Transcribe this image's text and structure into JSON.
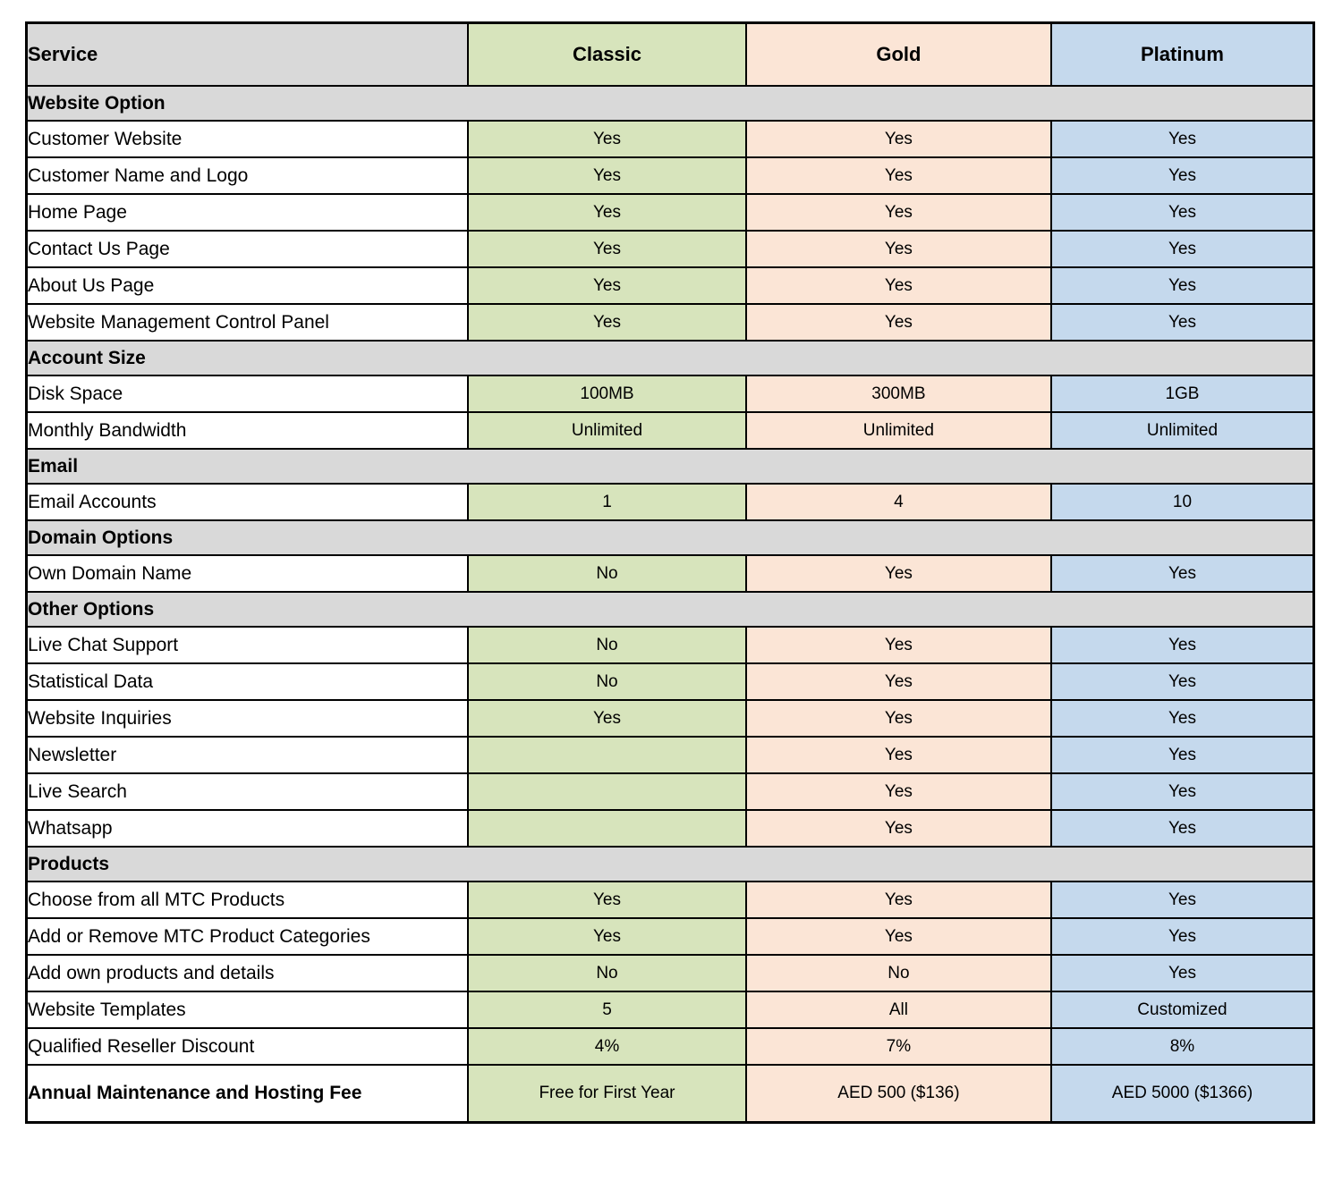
{
  "table": {
    "name": "hosting-plan-comparison",
    "border_color": "#000000",
    "section_bg": "#d9d9d9",
    "columns": [
      {
        "key": "service",
        "label": "Service",
        "bg": "#d9d9d9"
      },
      {
        "key": "classic",
        "label": "Classic",
        "bg": "#d7e4bc"
      },
      {
        "key": "gold",
        "label": "Gold",
        "bg": "#fbe5d6"
      },
      {
        "key": "platinum",
        "label": "Platinum",
        "bg": "#c5d9ed"
      }
    ],
    "sections": [
      {
        "title": "Website Option",
        "rows": [
          {
            "label": "Customer Website",
            "values": [
              "Yes",
              "Yes",
              "Yes"
            ]
          },
          {
            "label": "Customer Name and Logo",
            "values": [
              "Yes",
              "Yes",
              "Yes"
            ]
          },
          {
            "label": "Home Page",
            "values": [
              "Yes",
              "Yes",
              "Yes"
            ]
          },
          {
            "label": "Contact Us Page",
            "values": [
              "Yes",
              "Yes",
              "Yes"
            ]
          },
          {
            "label": "About Us Page",
            "values": [
              "Yes",
              "Yes",
              "Yes"
            ]
          },
          {
            "label": "Website Management Control Panel",
            "values": [
              "Yes",
              "Yes",
              "Yes"
            ]
          }
        ]
      },
      {
        "title": "Account Size",
        "rows": [
          {
            "label": "Disk Space",
            "values": [
              "100MB",
              "300MB",
              "1GB"
            ]
          },
          {
            "label": "Monthly Bandwidth",
            "values": [
              "Unlimited",
              "Unlimited",
              "Unlimited"
            ]
          }
        ]
      },
      {
        "title": "Email",
        "rows": [
          {
            "label": "Email Accounts",
            "values": [
              "1",
              "4",
              "10"
            ]
          }
        ]
      },
      {
        "title": "Domain Options",
        "rows": [
          {
            "label": "Own Domain Name",
            "values": [
              "No",
              "Yes",
              "Yes"
            ]
          }
        ]
      },
      {
        "title": "Other Options",
        "rows": [
          {
            "label": "Live Chat Support",
            "values": [
              "No",
              "Yes",
              "Yes"
            ]
          },
          {
            "label": "Statistical Data",
            "values": [
              "No",
              "Yes",
              "Yes"
            ]
          },
          {
            "label": "Website Inquiries",
            "values": [
              "Yes",
              "Yes",
              "Yes"
            ]
          },
          {
            "label": "Newsletter",
            "values": [
              "",
              "Yes",
              "Yes"
            ]
          },
          {
            "label": "Live Search",
            "values": [
              "",
              "Yes",
              "Yes"
            ]
          },
          {
            "label": "Whatsapp",
            "values": [
              "",
              "Yes",
              "Yes"
            ]
          }
        ]
      },
      {
        "title": "Products",
        "rows": [
          {
            "label": "Choose from all MTC Products",
            "values": [
              "Yes",
              "Yes",
              "Yes"
            ]
          },
          {
            "label": "Add or Remove MTC Product Categories",
            "values": [
              "Yes",
              "Yes",
              "Yes"
            ]
          },
          {
            "label": "Add own products and details",
            "values": [
              "No",
              "No",
              "Yes"
            ]
          },
          {
            "label": "Website Templates",
            "values": [
              "5",
              "All",
              "Customized"
            ]
          },
          {
            "label": "Qualified Reseller Discount",
            "values": [
              "4%",
              "7%",
              "8%"
            ]
          }
        ]
      }
    ],
    "footer_row": {
      "label": "Annual Maintenance and Hosting Fee",
      "values": [
        "Free for First Year",
        "AED 500 ($136)",
        "AED 5000 ($1366)"
      ]
    }
  }
}
